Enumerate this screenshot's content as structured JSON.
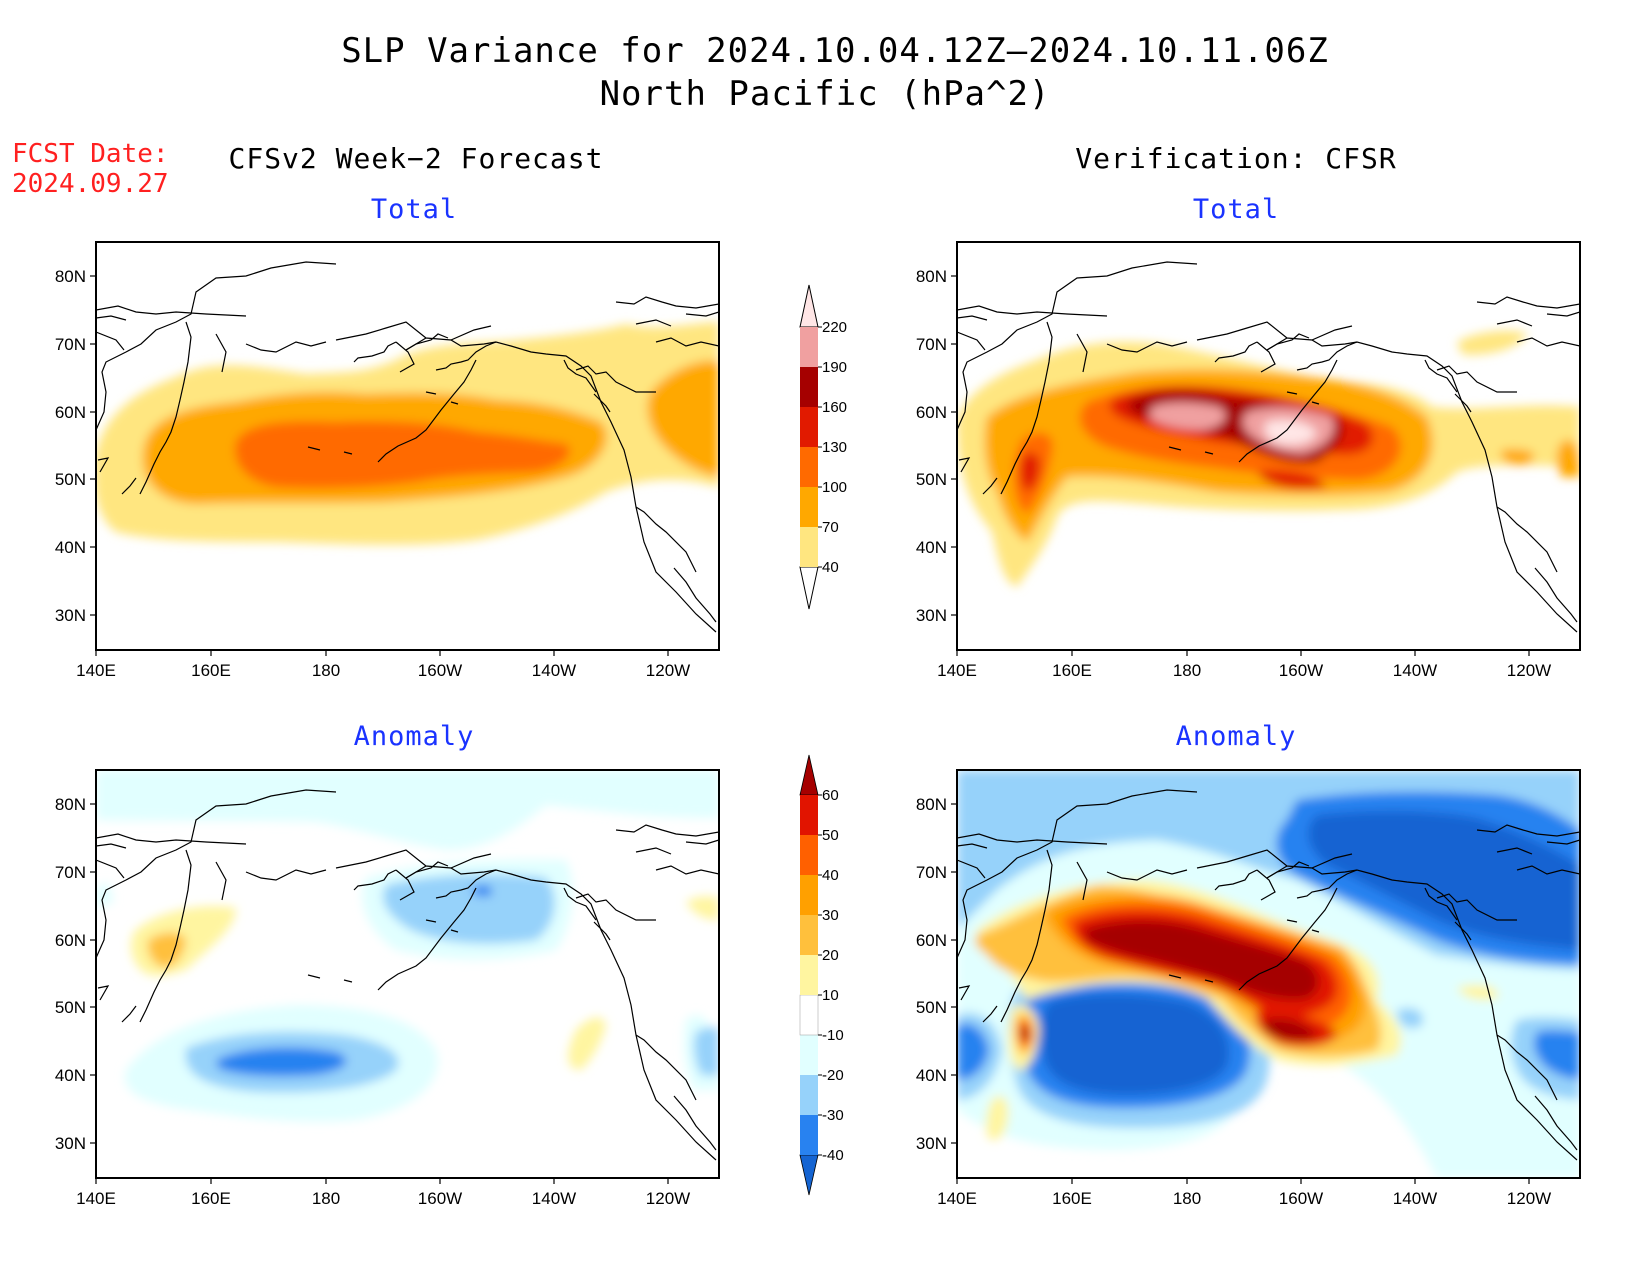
{
  "title": {
    "line1": "SLP Variance for 2024.10.04.12Z–2024.10.11.06Z",
    "line2": "North Pacific (hPa^2)"
  },
  "fcst": {
    "line1": "FCST Date:",
    "line2": "2024.09.27"
  },
  "columns": {
    "left": "CFSv2 Week−2 Forecast",
    "right": "Verification: CFSR"
  },
  "panel_titles": {
    "tl": "Total",
    "tr": "Total",
    "bl": "Anomaly",
    "br": "Anomaly"
  },
  "axes": {
    "lat_ticks": [
      "80N",
      "70N",
      "60N",
      "50N",
      "40N",
      "30N"
    ],
    "lon_ticks": [
      "140E",
      "160E",
      "180",
      "160W",
      "140W",
      "120W"
    ]
  },
  "colorbars": {
    "total": {
      "labels": [
        "40",
        "70",
        "100",
        "130",
        "160",
        "190",
        "220"
      ],
      "colors": [
        "#ffe680",
        "#ffa800",
        "#ff6a00",
        "#e11a00",
        "#a50000",
        "#f0a0a0",
        "#ffe6e6"
      ]
    },
    "anomaly": {
      "labels": [
        "-40",
        "-30",
        "-20",
        "-10",
        "10",
        "20",
        "30",
        "40",
        "50",
        "60"
      ],
      "colors": [
        "#1464d2",
        "#2882f0",
        "#96d2fa",
        "#e1ffff",
        "#ffffff",
        "#fff5a0",
        "#ffc03c",
        "#ffa000",
        "#ff6000",
        "#e11400",
        "#a50000"
      ]
    }
  },
  "colors": {
    "title_text": "#000000",
    "panel_title": "#1a33ff",
    "fcst_text": "#ff2020",
    "coastline": "#000000"
  }
}
